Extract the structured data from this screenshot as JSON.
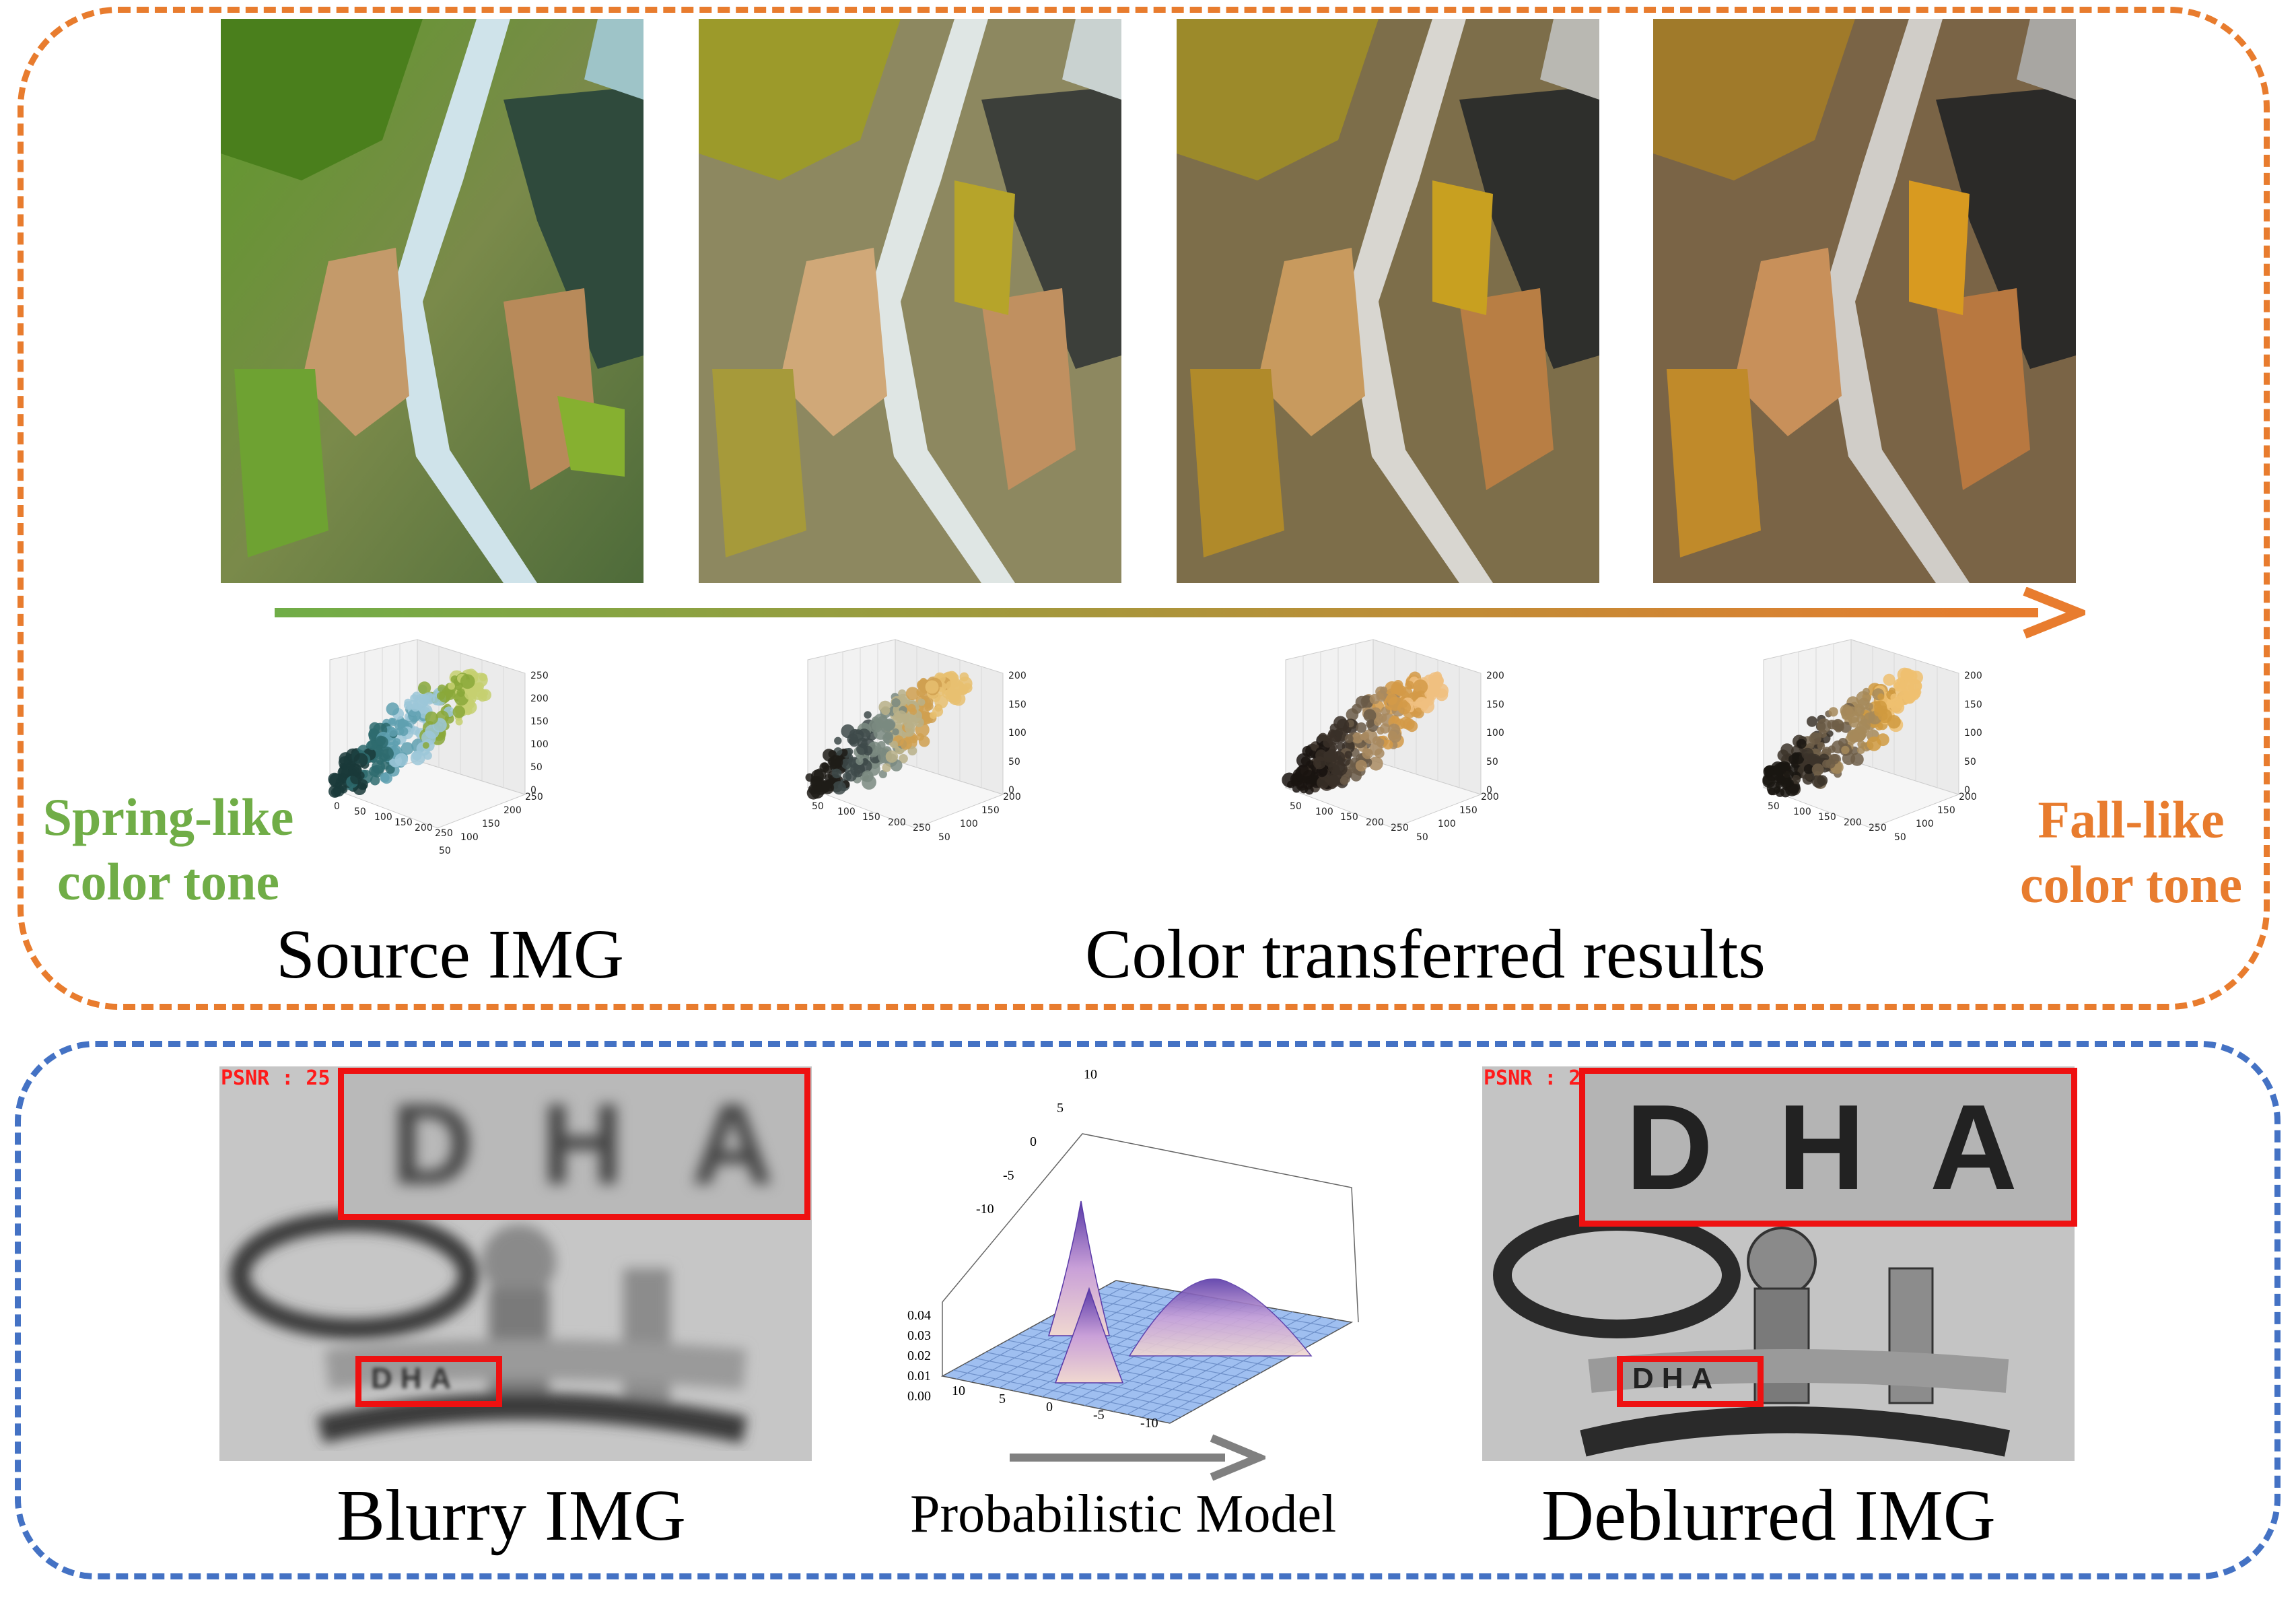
{
  "top_panel": {
    "left_label_line1": "Spring-like",
    "left_label_line2": "color tone",
    "right_label_line1": "Fall-like",
    "right_label_line2": "color tone",
    "source_caption": "Source IMG",
    "results_caption": "Color transferred results",
    "colors": {
      "spring": "#70ad47",
      "fall": "#e87c2e",
      "border": "#e87c2e"
    },
    "plots": [
      {
        "z_ticks": [
          "250",
          "200",
          "150",
          "100",
          "50",
          "0"
        ],
        "x_ticks": [
          "0",
          "50",
          "100",
          "150",
          "200",
          "250"
        ],
        "y_ticks": [
          "250",
          "200",
          "150",
          "100",
          "50"
        ]
      },
      {
        "z_ticks": [
          "200",
          "150",
          "100",
          "50",
          "0"
        ],
        "x_ticks": [
          "50",
          "100",
          "150",
          "200",
          "250"
        ],
        "y_ticks": [
          "200",
          "150",
          "100",
          "50"
        ]
      },
      {
        "z_ticks": [
          "200",
          "150",
          "100",
          "50",
          "0"
        ],
        "x_ticks": [
          "50",
          "100",
          "150",
          "200",
          "250"
        ],
        "y_ticks": [
          "200",
          "150",
          "100",
          "50"
        ]
      },
      {
        "z_ticks": [
          "200",
          "150",
          "100",
          "50",
          "0"
        ],
        "x_ticks": [
          "50",
          "100",
          "150",
          "200",
          "250"
        ],
        "y_ticks": [
          "200",
          "150",
          "100",
          "50"
        ]
      }
    ]
  },
  "bottom_panel": {
    "psnr_left": "PSNR : 25",
    "psnr_right": "PSNR : 2",
    "blurry_caption": "Blurry IMG",
    "model_caption": "Probabilistic Model",
    "deblurred_caption": "Deblurred IMG",
    "zoom_text": "DHA",
    "small_text": "DHA",
    "surface_z_ticks": [
      "0.04",
      "0.03",
      "0.02",
      "0.01",
      "0.00"
    ],
    "surface_top_ticks": [
      "10",
      "5",
      "0",
      "-5",
      "-10"
    ],
    "surface_bottom_ticks": [
      "10",
      "5",
      "0",
      "-5",
      "-10"
    ],
    "colors": {
      "border": "#4472c4",
      "highlight": "#ee1111",
      "arrow": "#808080"
    }
  }
}
